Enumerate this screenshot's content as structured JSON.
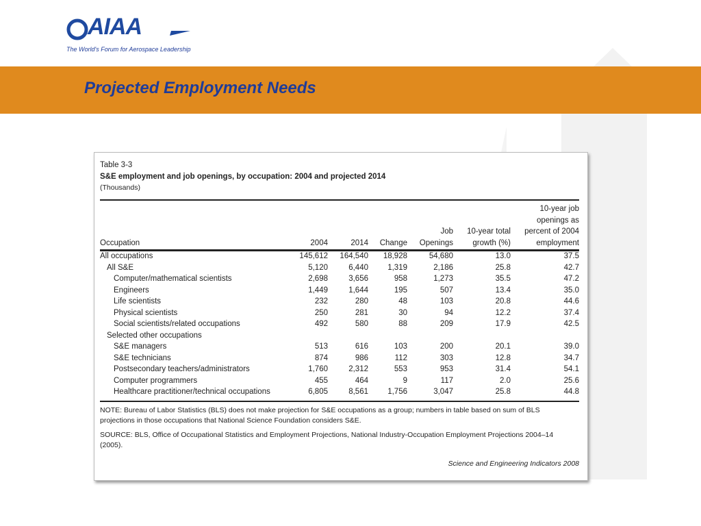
{
  "logo": {
    "name": "AIAA",
    "tagline": "The World's Forum for Aerospace Leadership"
  },
  "title": "Projected Employment Needs",
  "table": {
    "number": "Table 3-3",
    "caption": "S&E employment and job openings, by occupation: 2004 and projected 2014",
    "units": "(Thousands)",
    "header": [
      [
        "Occupation"
      ],
      [
        "2004"
      ],
      [
        "2014"
      ],
      [
        "Change"
      ],
      [
        "Job",
        "Openings"
      ],
      [
        "10-year total",
        "growth (%)"
      ],
      [
        "10-year job",
        "openings as",
        "percent of 2004",
        "employment"
      ]
    ],
    "rows": [
      {
        "label": "All occupations",
        "values": [
          "145,612",
          "164,540",
          "18,928",
          "54,680",
          "13.0",
          "37.5"
        ],
        "children": [
          {
            "label": "All S&E",
            "values": [
              "5,120",
              "6,440",
              "1,319",
              "2,186",
              "25.8",
              "42.7"
            ],
            "children": [
              {
                "label": "Computer/mathematical scientists",
                "values": [
                  "2,698",
                  "3,656",
                  "958",
                  "1,273",
                  "35.5",
                  "47.2"
                ]
              },
              {
                "label": "Engineers",
                "values": [
                  "1,449",
                  "1,644",
                  "195",
                  "507",
                  "13.4",
                  "35.0"
                ]
              },
              {
                "label": "Life scientists",
                "values": [
                  "232",
                  "280",
                  "48",
                  "103",
                  "20.8",
                  "44.6"
                ]
              },
              {
                "label": "Physical scientists",
                "values": [
                  "250",
                  "281",
                  "30",
                  "94",
                  "12.2",
                  "37.4"
                ]
              },
              {
                "label": "Social scientists/related occupations",
                "values": [
                  "492",
                  "580",
                  "88",
                  "209",
                  "17.9",
                  "42.5"
                ]
              }
            ]
          },
          {
            "label": "Selected other occupations",
            "children": [
              {
                "label": "S&E managers",
                "values": [
                  "513",
                  "616",
                  "103",
                  "200",
                  "20.1",
                  "39.0"
                ]
              },
              {
                "label": "S&E technicians",
                "values": [
                  "874",
                  "986",
                  "112",
                  "303",
                  "12.8",
                  "34.7"
                ]
              },
              {
                "label": "Postsecondary teachers/administrators",
                "values": [
                  "1,760",
                  "2,312",
                  "553",
                  "953",
                  "31.4",
                  "54.1"
                ]
              },
              {
                "label": "Computer programmers",
                "values": [
                  "455",
                  "464",
                  "9",
                  "117",
                  "2.0",
                  "25.6"
                ]
              },
              {
                "label": "Healthcare practitioner/technical occupations",
                "values": [
                  "6,805",
                  "8,561",
                  "1,756",
                  "3,047",
                  "25.8",
                  "44.8"
                ]
              }
            ]
          }
        ]
      }
    ],
    "note": "NOTE: Bureau of Labor Statistics (BLS) does not make projection for S&E occupations as a group; numbers in table based on sum of BLS projections in those occupations that National Science Foundation considers S&E.",
    "source": "SOURCE: BLS, Office of Occupational Statistics and Employment Projections, National Industry-Occupation Employment Projections 2004–14 (2005).",
    "credit": "Science and Engineering Indicators 2008"
  }
}
